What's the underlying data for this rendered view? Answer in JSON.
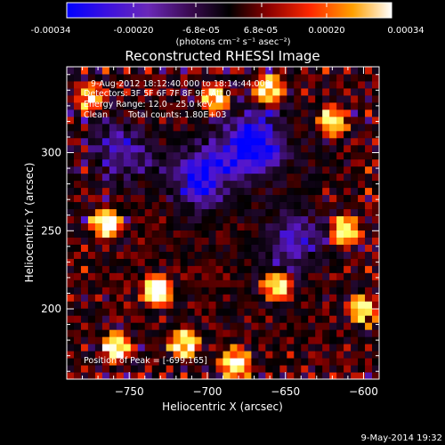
{
  "colorbar": {
    "tick_labels": [
      "-0.00034",
      "-0.00020",
      "-6.8e-05",
      "6.8e-05",
      "0.00020",
      "0.00034"
    ],
    "units": "(photons cm⁻² s⁻¹ asec⁻²)"
  },
  "info": {
    "time_range": "9-Aug-2012 18:12:40.000 to 18:14:44.000",
    "detectors": "Detectors: 3F 5F 6F 7F 8F 9F, Att 0",
    "energy_range": "Energy Range: 12.0 - 25.0 keV",
    "clean_label": "Clean",
    "total_counts": "Total counts: 1.80E+03",
    "peak_position": "Position of Peak = [-699,165]"
  },
  "footer": {
    "timestamp": "9-May-2014 19:32"
  },
  "chart_data": {
    "type": "heatmap",
    "title": "Reconstructed RHESSI Image",
    "xlabel": "Heliocentric X (arcsec)",
    "ylabel": "Heliocentric Y (arcsec)",
    "xlim": [
      -790,
      -590
    ],
    "ylim": [
      155,
      355
    ],
    "xticks": [
      -750,
      -700,
      -650,
      -600
    ],
    "yticks": [
      200,
      250,
      300
    ],
    "colorbar_range": [
      -0.00034,
      0.00034
    ],
    "colorbar_ticks": [
      -0.00034,
      -0.0002,
      -6.8e-05,
      6.8e-05,
      0.0002,
      0.00034
    ],
    "colormap": [
      "#0000ff",
      "#5a18c8",
      "#2a0a3a",
      "#000000",
      "#8a0000",
      "#ff3000",
      "#ff9a00",
      "#ffff60",
      "#ffffff"
    ],
    "peak": [
      -699,
      165
    ],
    "bright_regions": [
      {
        "x": -765,
        "y": 255,
        "level": 0.95
      },
      {
        "x": -732,
        "y": 212,
        "level": 1.0
      },
      {
        "x": -715,
        "y": 178,
        "level": 0.9
      },
      {
        "x": -682,
        "y": 165,
        "level": 0.95
      },
      {
        "x": -758,
        "y": 175,
        "level": 0.85
      },
      {
        "x": -655,
        "y": 215,
        "level": 0.8
      },
      {
        "x": -612,
        "y": 250,
        "level": 0.9
      },
      {
        "x": -600,
        "y": 200,
        "level": 0.8
      },
      {
        "x": -620,
        "y": 320,
        "level": 0.75
      },
      {
        "x": -695,
        "y": 335,
        "level": 0.8
      },
      {
        "x": -660,
        "y": 340,
        "level": 0.85
      },
      {
        "x": -775,
        "y": 335,
        "level": 0.7
      }
    ],
    "dark_regions": [
      {
        "x": -705,
        "y": 285,
        "level": -0.8
      },
      {
        "x": -670,
        "y": 305,
        "level": -0.95
      },
      {
        "x": -645,
        "y": 245,
        "level": -0.55
      },
      {
        "x": -755,
        "y": 300,
        "level": -0.5
      }
    ]
  }
}
